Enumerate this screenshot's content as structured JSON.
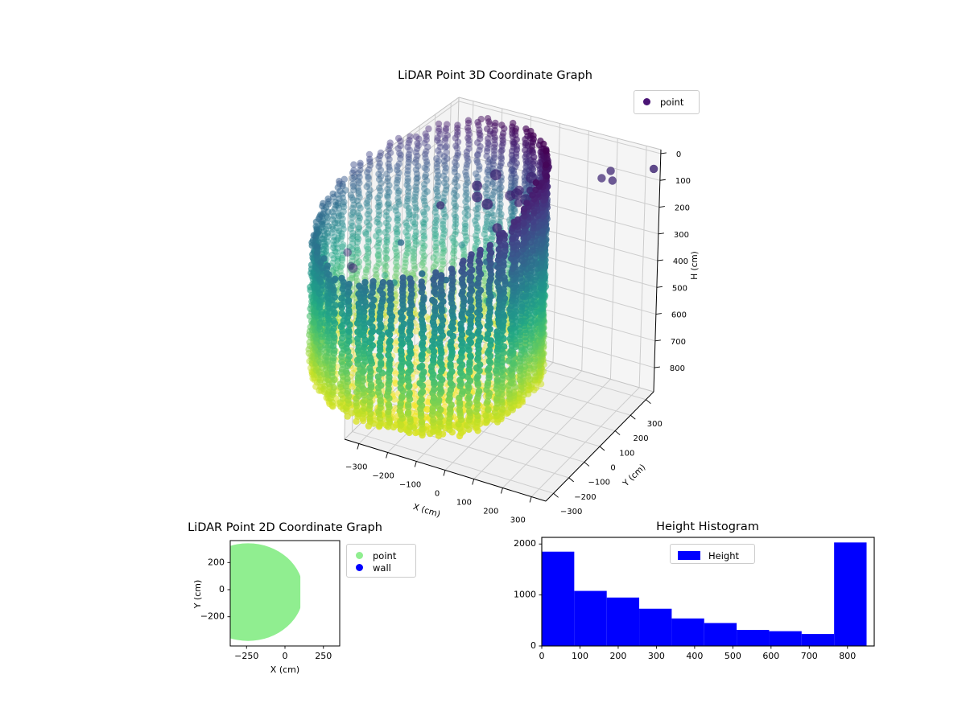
{
  "figure": {
    "background": "#ffffff"
  },
  "chart_data": [
    {
      "id": "plot3d",
      "type": "scatter3d",
      "title": "LiDAR Point 3D Coordinate Graph",
      "xlabel": "X (cm)",
      "ylabel": "Y (cm)",
      "zlabel": "H (cm)",
      "xlim": [
        -350,
        350
      ],
      "ylim": [
        -350,
        350
      ],
      "zlim": [
        -15,
        890
      ],
      "zaxis_inverted": true,
      "grid": true,
      "xticks": {
        "values": [
          -300,
          -200,
          -100,
          0,
          100,
          200,
          300
        ],
        "labels": [
          "−300",
          "−200",
          "−100",
          "0",
          "100",
          "200",
          "300"
        ]
      },
      "yticks": {
        "values": [
          -300,
          -200,
          -100,
          0,
          100,
          200,
          300
        ],
        "labels": [
          "−300",
          "−200",
          "−100",
          "0",
          "100",
          "200",
          "300"
        ]
      },
      "zticks": {
        "values": [
          0,
          100,
          200,
          300,
          400,
          500,
          600,
          700,
          800
        ],
        "labels": [
          "0",
          "100",
          "200",
          "300",
          "400",
          "500",
          "600",
          "700",
          "800"
        ]
      },
      "legend": [
        {
          "label": "point",
          "color": "#4a1475"
        }
      ],
      "colormap": "viridis",
      "cloud": {
        "description": "cylindrical silo wall scan colored by height, bowl-shaped floor",
        "center_x": -240,
        "center_y": -25,
        "radius": 352,
        "wall_flat_x": 95,
        "columns": 72,
        "column_step_cm": 13,
        "rim_top_min_h": 0,
        "rim_top_max_h": 340,
        "rim_phase_deg": 55,
        "floor_center_h": 848,
        "floor_rim_h": 788,
        "floor_grid_cm": 24,
        "h_color_max": 850,
        "interior_sparse_points": 26,
        "dark_cluster": {
          "count": 13,
          "x_range": [
            -150,
            30
          ],
          "y_range": [
            80,
            230
          ],
          "h_range": [
            120,
            270
          ]
        },
        "dark_left_cluster": {
          "count": 3,
          "x_range": [
            -560,
            -480
          ],
          "y_range": [
            -120,
            20
          ],
          "h_range": [
            440,
            520
          ]
        },
        "dark_outliers": [
          [
            330,
            345,
            60
          ],
          [
            190,
            330,
            100
          ],
          [
            165,
            320,
            130
          ],
          [
            205,
            315,
            125
          ],
          [
            -250,
            60,
            230
          ]
        ]
      }
    },
    {
      "id": "plot2d",
      "type": "scatter2d",
      "title": "LiDAR Point 2D Coordinate Graph",
      "xlabel": "X (cm)",
      "ylabel": "Y (cm)",
      "xlim": [
        -356,
        356
      ],
      "ylim": [
        -415,
        362
      ],
      "xticks": {
        "values": [
          -250,
          0,
          250
        ],
        "labels": [
          "−250",
          "0",
          "250"
        ]
      },
      "yticks": {
        "values": [
          200,
          0,
          -200
        ],
        "labels": [
          "200",
          "0",
          "−200"
        ]
      },
      "legend": [
        {
          "label": "point",
          "color": "#90ee90"
        },
        {
          "label": "wall",
          "color": "#0000ff"
        }
      ],
      "disc": {
        "cx": -240,
        "cy": -18,
        "r": 360,
        "clip_x_max": 100,
        "color": "#90ee90"
      }
    },
    {
      "id": "hist",
      "type": "bar",
      "title": "Height Histogram",
      "bin_start": 0,
      "bin_width": 85,
      "values": [
        1850,
        1080,
        950,
        730,
        540,
        450,
        315,
        290,
        235,
        2030
      ],
      "xlim": [
        0,
        870
      ],
      "ylim": [
        0,
        2130
      ],
      "xticks": {
        "values": [
          0,
          100,
          200,
          300,
          400,
          500,
          600,
          700,
          800
        ],
        "labels": [
          "0",
          "100",
          "200",
          "300",
          "400",
          "500",
          "600",
          "700",
          "800"
        ]
      },
      "yticks": {
        "values": [
          0,
          1000,
          2000
        ],
        "labels": [
          "0",
          "1000",
          "2000"
        ]
      },
      "color": "#0000ff",
      "legend": [
        {
          "label": "Height",
          "color": "#0000ff"
        }
      ]
    }
  ]
}
